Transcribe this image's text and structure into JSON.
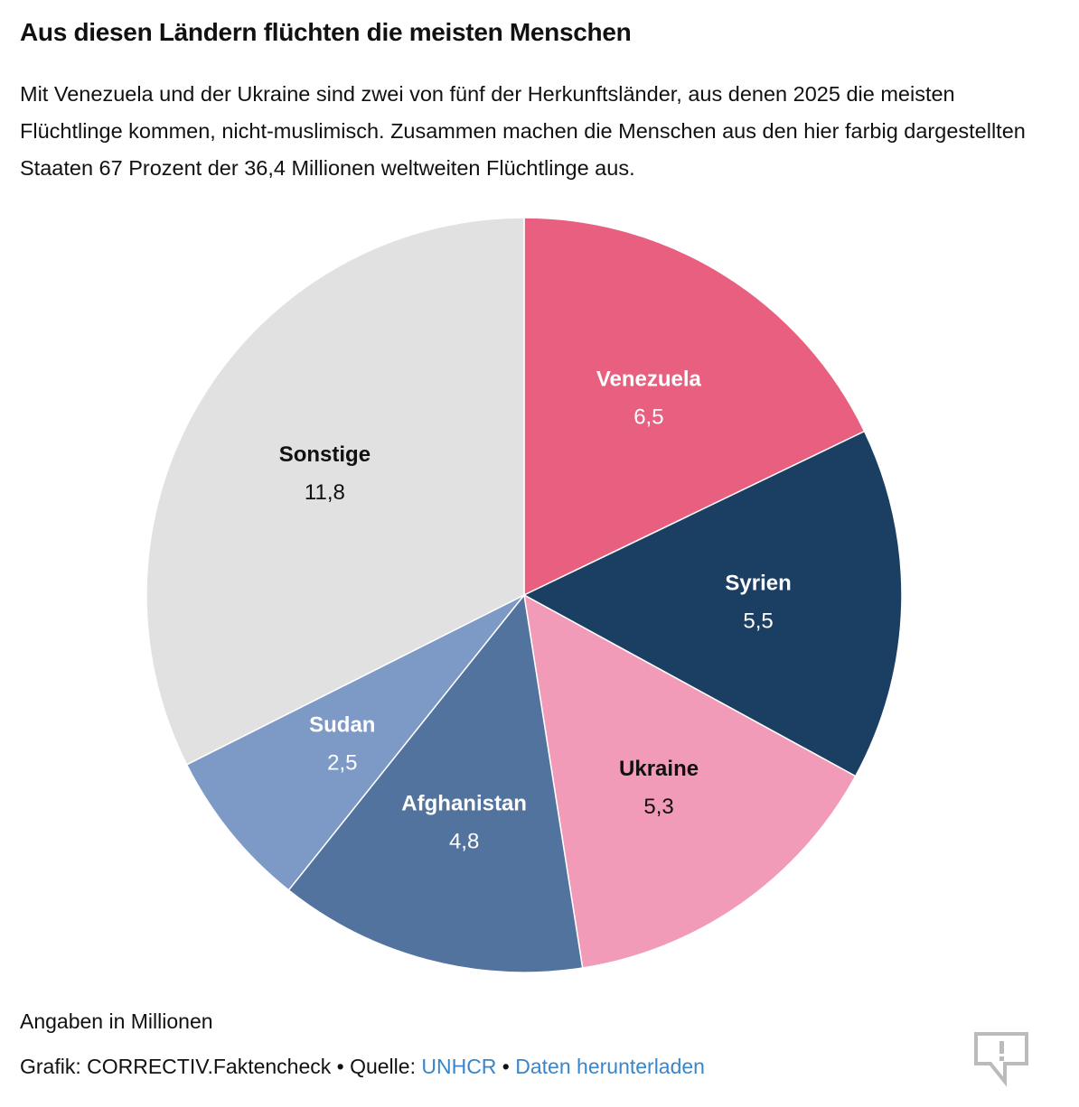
{
  "title": "Aus diesen Ländern flüchten die meisten Menschen",
  "subtitle": "Mit Venezuela und der Ukraine sind zwei von fünf der Herkunftsländer, aus denen 2025 die meisten Flüchtlinge kommen, nicht-muslimisch. Zusammen machen die Menschen aus den hier farbig dargestellten Staaten 67 Prozent der 36,4 Millionen weltweiten Flüchtlinge aus.",
  "chart_data": {
    "type": "pie",
    "unit_note": "Angaben in Millionen",
    "start": "12 o'clock, clockwise",
    "slices": [
      {
        "label": "Venezuela",
        "value": 6.5,
        "display": "6,5",
        "color": "#e95f80",
        "text_color": "#ffffff"
      },
      {
        "label": "Syrien",
        "value": 5.5,
        "display": "5,5",
        "color": "#1b3f63",
        "text_color": "#ffffff"
      },
      {
        "label": "Ukraine",
        "value": 5.3,
        "display": "5,3",
        "color": "#f19bb9",
        "text_color": "#111111"
      },
      {
        "label": "Afghanistan",
        "value": 4.8,
        "display": "4,8",
        "color": "#53739f",
        "text_color": "#ffffff"
      },
      {
        "label": "Sudan",
        "value": 2.5,
        "display": "2,5",
        "color": "#7d9ac6",
        "text_color": "#ffffff"
      },
      {
        "label": "Sonstige",
        "value": 11.8,
        "display": "11,8",
        "color": "#e1e1e1",
        "text_color": "#111111"
      }
    ]
  },
  "footer": {
    "note": "Angaben in Millionen",
    "credit_prefix": "Grafik: CORRECTIV.Faktencheck • Quelle: ",
    "source_link": "UNHCR",
    "separator": " • ",
    "download_link": "Daten herunterladen",
    "icon": "speech-bubble-exclamation-icon",
    "link_color": "#3a86c8"
  }
}
